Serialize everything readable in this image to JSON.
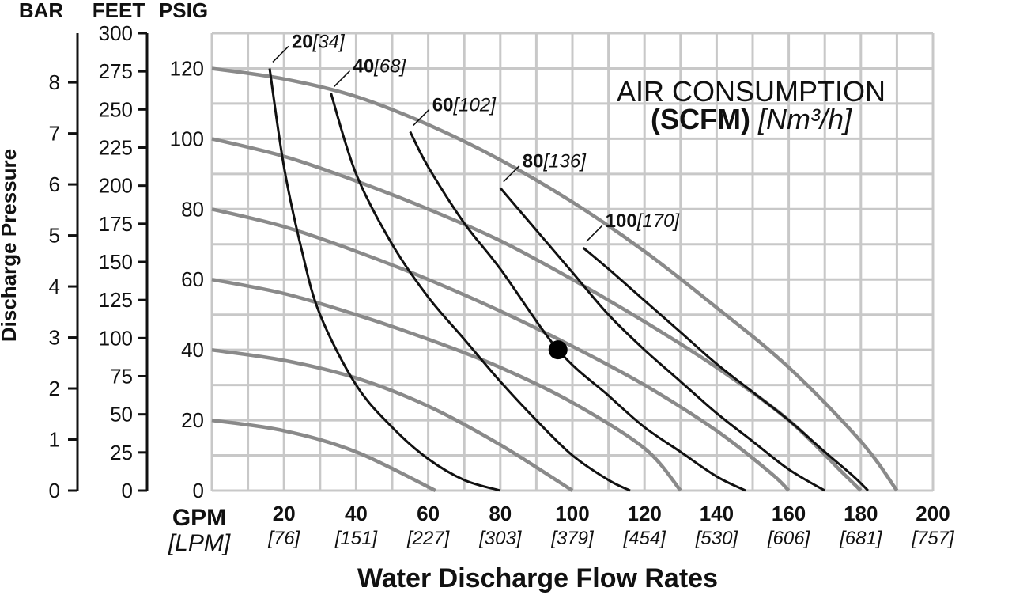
{
  "chart_data": {
    "type": "line",
    "title": "AIR CONSUMPTION",
    "subtitle": {
      "bold": "(SCFM)",
      "unit": "[Nm³/h]"
    },
    "xlabel": "Water Discharge Flow Rates",
    "ylabel": "Discharge Pressure",
    "x_unit_primary": "GPM",
    "x_unit_secondary": "[LPM]",
    "scale_headers": {
      "bar": "BAR",
      "feet": "FEET",
      "psig": "PSIG"
    },
    "xlim": [
      0,
      200
    ],
    "ylim_psig": [
      0,
      130
    ],
    "x_ticks": [
      "20",
      "40",
      "60",
      "80",
      "100",
      "120",
      "140",
      "160",
      "180",
      "200"
    ],
    "x_ticks_lpm": [
      "[76]",
      "[151]",
      "[227]",
      "[303]",
      "[379]",
      "[454]",
      "[530]",
      "[606]",
      "[681]",
      "[757]"
    ],
    "psig_ticks": [
      "0",
      "20",
      "40",
      "60",
      "80",
      "100",
      "120"
    ],
    "feet_ticks": [
      "0",
      "25",
      "50",
      "75",
      "100",
      "125",
      "150",
      "175",
      "200",
      "225",
      "250",
      "275",
      "300"
    ],
    "bar_ticks": [
      "0",
      "1",
      "2",
      "3",
      "4",
      "5",
      "6",
      "7",
      "8"
    ],
    "grid": true,
    "performance_curves": [
      {
        "points": [
          [
            0,
            20
          ],
          [
            20,
            17
          ],
          [
            40,
            11
          ],
          [
            62,
            0
          ]
        ]
      },
      {
        "points": [
          [
            0,
            40
          ],
          [
            20,
            37
          ],
          [
            40,
            32
          ],
          [
            60,
            24
          ],
          [
            80,
            13
          ],
          [
            100,
            0
          ]
        ]
      },
      {
        "points": [
          [
            0,
            60
          ],
          [
            20,
            56
          ],
          [
            40,
            50
          ],
          [
            60,
            43
          ],
          [
            80,
            35
          ],
          [
            100,
            25
          ],
          [
            120,
            12
          ],
          [
            130,
            0
          ]
        ]
      },
      {
        "points": [
          [
            0,
            80
          ],
          [
            20,
            75
          ],
          [
            40,
            68
          ],
          [
            60,
            60
          ],
          [
            80,
            51
          ],
          [
            100,
            41
          ],
          [
            120,
            30
          ],
          [
            140,
            17
          ],
          [
            155,
            5
          ],
          [
            160,
            0
          ]
        ]
      },
      {
        "points": [
          [
            0,
            100
          ],
          [
            20,
            95
          ],
          [
            40,
            88
          ],
          [
            60,
            80
          ],
          [
            80,
            71
          ],
          [
            100,
            60
          ],
          [
            120,
            48
          ],
          [
            140,
            35
          ],
          [
            160,
            20
          ],
          [
            175,
            5
          ],
          [
            180,
            0
          ]
        ]
      },
      {
        "points": [
          [
            0,
            120
          ],
          [
            20,
            117
          ],
          [
            40,
            112
          ],
          [
            60,
            104
          ],
          [
            80,
            94
          ],
          [
            100,
            82
          ],
          [
            120,
            68
          ],
          [
            140,
            52
          ],
          [
            160,
            35
          ],
          [
            180,
            14
          ],
          [
            190,
            0
          ]
        ]
      }
    ],
    "air_series": [
      {
        "name_bold": "20",
        "name_metric": "[34]",
        "points": [
          [
            16,
            120
          ],
          [
            20,
            92
          ],
          [
            25,
            68
          ],
          [
            30,
            50
          ],
          [
            40,
            30
          ],
          [
            50,
            18
          ],
          [
            60,
            9
          ],
          [
            70,
            3
          ],
          [
            80,
            0
          ]
        ]
      },
      {
        "name_bold": "40",
        "name_metric": "[68]",
        "points": [
          [
            33,
            113
          ],
          [
            40,
            90
          ],
          [
            50,
            70
          ],
          [
            60,
            55
          ],
          [
            70,
            43
          ],
          [
            80,
            31
          ],
          [
            90,
            20
          ],
          [
            100,
            10
          ],
          [
            110,
            3
          ],
          [
            116,
            0
          ]
        ]
      },
      {
        "name_bold": "60",
        "name_metric": "[102]",
        "points": [
          [
            55,
            102
          ],
          [
            60,
            92
          ],
          [
            70,
            76
          ],
          [
            80,
            63
          ],
          [
            96,
            40
          ],
          [
            110,
            27
          ],
          [
            120,
            18
          ],
          [
            130,
            11
          ],
          [
            140,
            4
          ],
          [
            148,
            0
          ]
        ]
      },
      {
        "name_bold": "80",
        "name_metric": "[136]",
        "points": [
          [
            80,
            86
          ],
          [
            90,
            74
          ],
          [
            100,
            62
          ],
          [
            110,
            50
          ],
          [
            120,
            40
          ],
          [
            130,
            31
          ],
          [
            140,
            22
          ],
          [
            150,
            14
          ],
          [
            160,
            6
          ],
          [
            170,
            0
          ]
        ]
      },
      {
        "name_bold": "100",
        "name_metric": "[170]",
        "points": [
          [
            103,
            69
          ],
          [
            110,
            63
          ],
          [
            120,
            54
          ],
          [
            130,
            45
          ],
          [
            140,
            36
          ],
          [
            150,
            28
          ],
          [
            160,
            20
          ],
          [
            170,
            11
          ],
          [
            178,
            4
          ],
          [
            182,
            0
          ]
        ]
      }
    ],
    "operating_point": {
      "x": 96,
      "y": 40
    }
  }
}
